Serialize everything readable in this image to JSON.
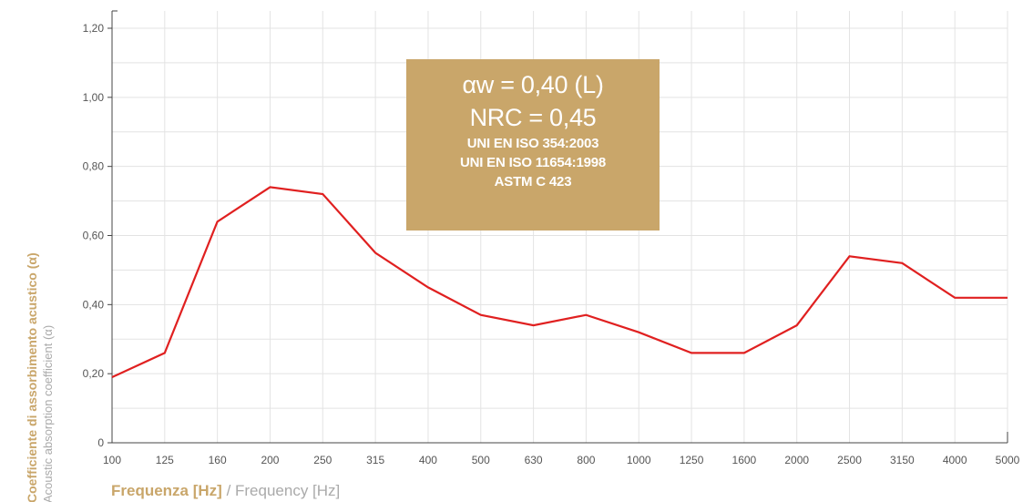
{
  "info_box": {
    "line1": "αw = 0,40 (L)",
    "line2": "NRC = 0,45",
    "standards": [
      "UNI EN ISO 354:2003",
      "UNI EN ISO 11654:1998",
      "ASTM C 423"
    ]
  },
  "colors": {
    "line": "#e02020",
    "accent": "#c9a66a",
    "box": "#c9a66a",
    "grid": "#e3e3e3",
    "axis": "#444444",
    "ylabel_en": "#aaaaaa",
    "xlabel_en": "#aaaaaa"
  },
  "chart_data": {
    "type": "line",
    "title": "",
    "xlabel_it": "Frequenza [Hz]",
    "xlabel_sep": " / ",
    "xlabel_en": "Frequency [Hz]",
    "ylabel_it": "Coefficiente di assorbimento acustico (α)",
    "ylabel_en": "Acoustic absorption coefficient (α)",
    "ylim": [
      0,
      1.2
    ],
    "yticks": [
      0,
      0.2,
      0.4,
      0.6,
      0.8,
      1.0,
      1.2
    ],
    "ytick_labels": [
      "0",
      "0,20",
      "0,40",
      "0,60",
      "0,80",
      "1,00",
      "1,20"
    ],
    "grid": true,
    "categories": [
      "100",
      "125",
      "160",
      "200",
      "250",
      "315",
      "400",
      "500",
      "630",
      "800",
      "1000",
      "1250",
      "1600",
      "2000",
      "2500",
      "3150",
      "4000",
      "5000"
    ],
    "series": [
      {
        "values": [
          0.19,
          0.26,
          0.64,
          0.74,
          0.72,
          0.55,
          0.45,
          0.37,
          0.34,
          0.37,
          0.32,
          0.26,
          0.26,
          0.34,
          0.54,
          0.52,
          0.42,
          0.42
        ]
      }
    ]
  }
}
